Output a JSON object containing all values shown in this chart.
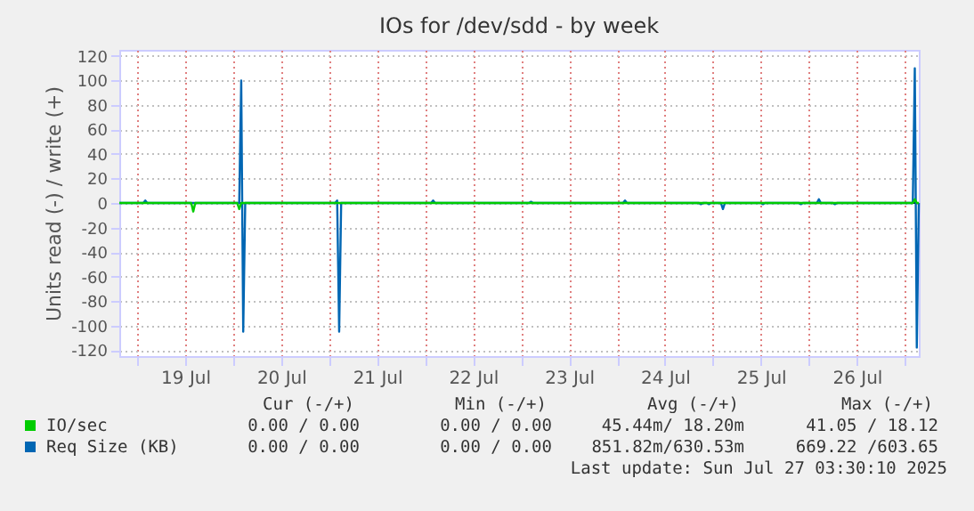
{
  "chart_data": {
    "type": "line",
    "title": "IOs for /dev/sdd - by week",
    "ylabel": "Units read (-) / write (+)",
    "xlim": [
      "2025-07-18T19:30",
      "2025-07-27T03:30"
    ],
    "xticks": [
      {
        "value": "2025-07-19T00:00",
        "label": null
      },
      {
        "value": "2025-07-19T12:00",
        "label": "19 Jul"
      },
      {
        "value": "2025-07-20T00:00",
        "label": null
      },
      {
        "value": "2025-07-20T12:00",
        "label": "20 Jul"
      },
      {
        "value": "2025-07-21T00:00",
        "label": null
      },
      {
        "value": "2025-07-21T12:00",
        "label": "21 Jul"
      },
      {
        "value": "2025-07-22T00:00",
        "label": null
      },
      {
        "value": "2025-07-22T12:00",
        "label": "22 Jul"
      },
      {
        "value": "2025-07-23T00:00",
        "label": null
      },
      {
        "value": "2025-07-23T12:00",
        "label": "23 Jul"
      },
      {
        "value": "2025-07-24T00:00",
        "label": null
      },
      {
        "value": "2025-07-24T12:00",
        "label": "24 Jul"
      },
      {
        "value": "2025-07-25T00:00",
        "label": null
      },
      {
        "value": "2025-07-25T12:00",
        "label": "25 Jul"
      },
      {
        "value": "2025-07-26T00:00",
        "label": null
      },
      {
        "value": "2025-07-26T12:00",
        "label": "26 Jul"
      },
      {
        "value": "2025-07-27T00:00",
        "label": null
      }
    ],
    "ylim": [
      -125,
      125
    ],
    "yticks": [
      -120,
      -100,
      -80,
      -60,
      -40,
      -20,
      0,
      20,
      40,
      60,
      80,
      100,
      120
    ],
    "grid": true,
    "legend": "bottom left",
    "line_style": "solid",
    "ref_lines": [
      {
        "axis": "y",
        "value": 0,
        "label": null,
        "color": "#000000"
      }
    ],
    "series": [
      {
        "name": "IO/sec",
        "color": "#00cc00",
        "x": [
          "2025-07-18T19:30",
          "2025-07-19T13:30",
          "2025-07-19T14:00",
          "2025-07-19T14:30",
          "2025-07-20T01:00",
          "2025-07-20T01:30",
          "2025-07-20T02:00",
          "2025-07-27T02:00",
          "2025-07-27T02:30",
          "2025-07-27T03:00",
          "2025-07-27T03:30"
        ],
        "values": [
          0,
          0,
          -7,
          0,
          0,
          -5,
          0,
          0,
          3,
          0,
          0
        ]
      },
      {
        "name": "Req Size (KB)",
        "color": "#0066b3",
        "x": [
          "2025-07-18T19:30",
          "2025-07-19T01:30",
          "2025-07-19T02:00",
          "2025-07-19T02:30",
          "2025-07-20T01:30",
          "2025-07-20T02:00",
          "2025-07-20T02:30",
          "2025-07-20T03:00",
          "2025-07-21T01:30",
          "2025-07-21T02:00",
          "2025-07-21T02:30",
          "2025-07-21T03:00",
          "2025-07-22T01:30",
          "2025-07-22T02:00",
          "2025-07-22T02:30",
          "2025-07-23T02:00",
          "2025-07-23T02:30",
          "2025-07-23T03:00",
          "2025-07-24T01:30",
          "2025-07-24T02:00",
          "2025-07-24T02:30",
          "2025-07-24T20:30",
          "2025-07-24T21:00",
          "2025-07-24T21:30",
          "2025-07-24T22:30",
          "2025-07-24T23:00",
          "2025-07-24T23:30",
          "2025-07-25T02:00",
          "2025-07-25T02:30",
          "2025-07-25T03:00",
          "2025-07-25T12:00",
          "2025-07-25T12:30",
          "2025-07-25T13:00",
          "2025-07-25T21:30",
          "2025-07-25T22:00",
          "2025-07-25T22:30",
          "2025-07-26T02:00",
          "2025-07-26T02:30",
          "2025-07-26T03:00",
          "2025-07-26T06:00",
          "2025-07-26T06:30",
          "2025-07-26T07:00",
          "2025-07-27T02:00",
          "2025-07-27T02:30",
          "2025-07-27T03:00",
          "2025-07-27T03:30"
        ],
        "values": [
          0,
          0,
          2,
          0,
          0,
          100,
          -105,
          0,
          0,
          2,
          -105,
          0,
          0,
          2,
          0,
          0,
          1,
          0,
          0,
          2,
          0,
          0,
          -1,
          0,
          0,
          -1,
          0,
          0,
          -5,
          0,
          0,
          -1,
          0,
          0,
          -1,
          0,
          0,
          3,
          0,
          0,
          -1,
          0,
          0,
          110,
          -118,
          0
        ]
      }
    ],
    "annotations": [
      "Cur (-/+)",
      "Min (-/+)",
      "Avg (-/+)",
      "Max (-/+)",
      "0.00 /  0.00",
      "0.00 /  0.00",
      "45.44m/ 18.20m",
      "41.05 / 18.12",
      "0.00 /  0.00",
      "0.00 /  0.00",
      "851.82m/630.53m",
      "669.22 /603.65",
      "Last update: Sun Jul 27 03:30:10 2025"
    ]
  }
}
